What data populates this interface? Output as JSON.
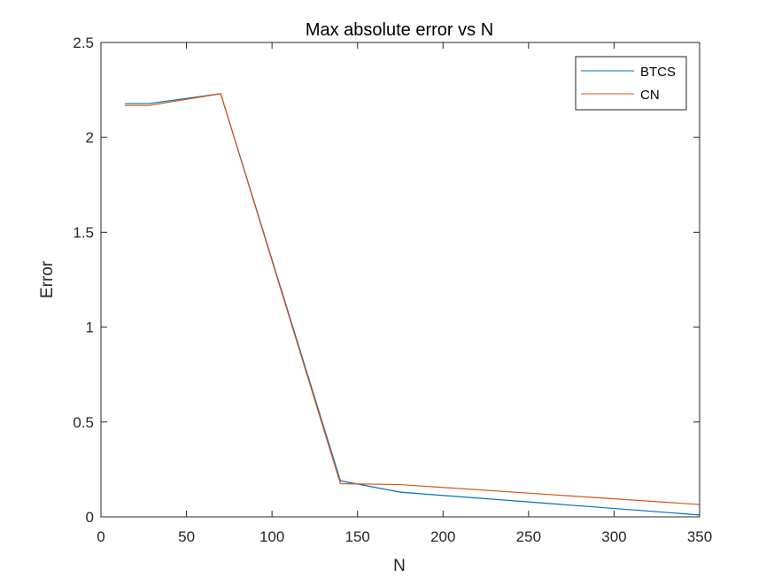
{
  "chart_data": {
    "type": "line",
    "title": "Max absolute error vs N",
    "xlabel": "N",
    "ylabel": "Error",
    "xlim": [
      0,
      350
    ],
    "ylim": [
      0,
      2.5
    ],
    "xticks": [
      0,
      50,
      100,
      150,
      200,
      250,
      300,
      350
    ],
    "yticks": [
      0,
      0.5,
      1,
      1.5,
      2,
      2.5
    ],
    "xtick_labels": [
      "0",
      "50",
      "100",
      "150",
      "200",
      "250",
      "300",
      "350"
    ],
    "ytick_labels": [
      "0",
      "0.5",
      "1",
      "1.5",
      "2",
      "2.5"
    ],
    "grid": false,
    "legend_position": "top-right",
    "series": [
      {
        "name": "BTCS",
        "color": "#0072BD",
        "x": [
          14,
          28,
          70,
          140,
          175,
          350
        ],
        "y": [
          2.178,
          2.178,
          2.23,
          0.19,
          0.13,
          0.01
        ]
      },
      {
        "name": "CN",
        "color": "#D95319",
        "x": [
          14,
          28,
          70,
          140,
          175,
          350
        ],
        "y": [
          2.168,
          2.168,
          2.23,
          0.175,
          0.17,
          0.065
        ]
      }
    ]
  }
}
